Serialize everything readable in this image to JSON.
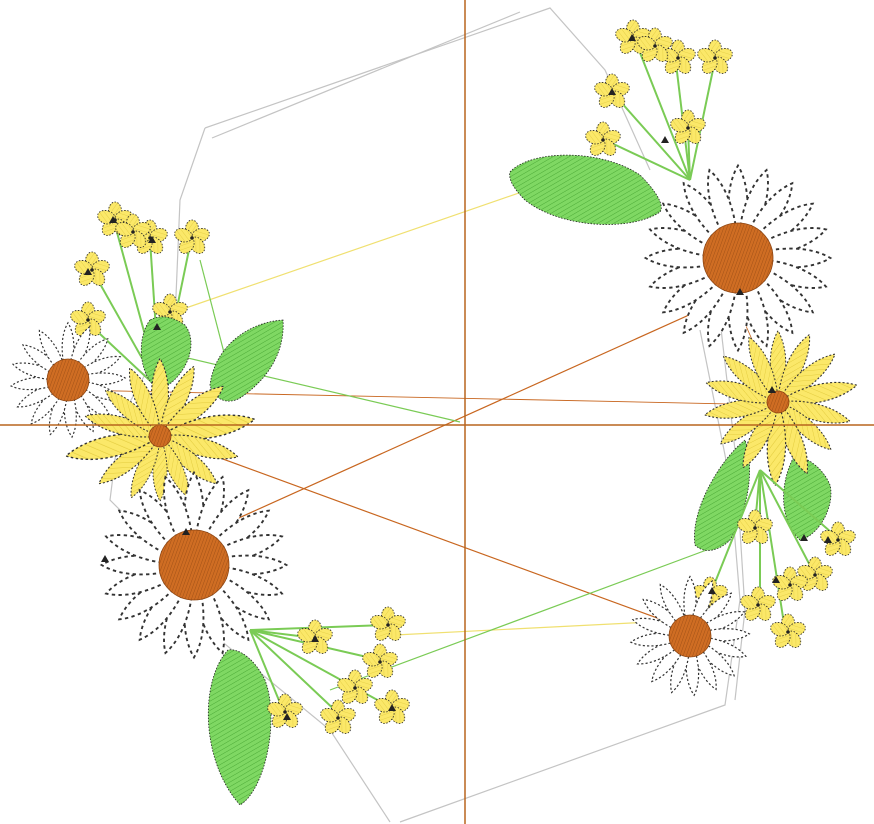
{
  "design": {
    "colors": {
      "background": "#ffffff",
      "crosshair": "#b8651e",
      "hoop_outline": "#bfbfbf",
      "petal_yellow": "#fbe869",
      "petal_yellow_stitch": "#e0c93a",
      "leaf_green": "#76d25a",
      "leaf_stitch": "#3f9e2c",
      "daisy_center": "#c8661f",
      "daisy_petal": "#ffffff",
      "outline_dots": "#222222",
      "jump_orange": "#c8661f",
      "jump_green": "#7acb55",
      "jump_yellow": "#f0e070"
    },
    "motifs": {
      "daisies": 4,
      "yellow_daisies": 2,
      "leaves": 6,
      "small_flower_clusters": 4
    }
  }
}
